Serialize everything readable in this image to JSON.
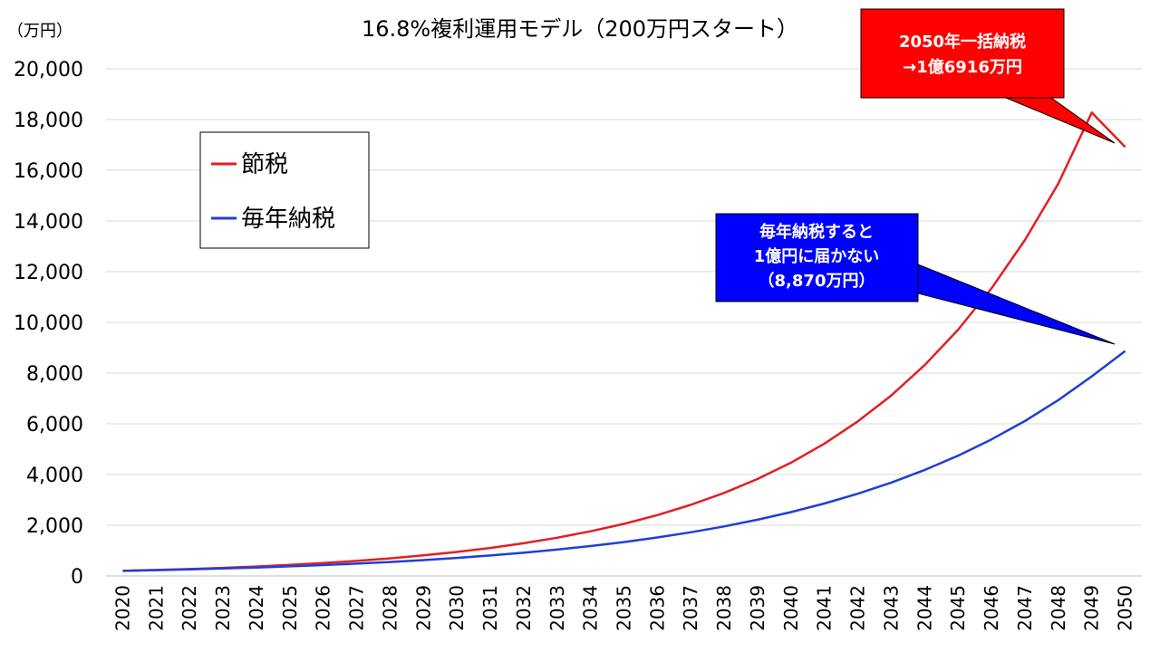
{
  "chart_data": {
    "type": "line",
    "title": "16.8%複利運用モデル（200万円スタート）",
    "y_unit_label": "（万円）",
    "ylim": [
      0,
      20000
    ],
    "y_ticks": [
      "0",
      "2,000",
      "4,000",
      "6,000",
      "8,000",
      "10,000",
      "12,000",
      "14,000",
      "16,000",
      "18,000",
      "20,000"
    ],
    "categories": [
      "2020",
      "2021",
      "2022",
      "2023",
      "2024",
      "2025",
      "2026",
      "2027",
      "2028",
      "2029",
      "2030",
      "2031",
      "2032",
      "2033",
      "2034",
      "2035",
      "2036",
      "2037",
      "2038",
      "2039",
      "2040",
      "2041",
      "2042",
      "2043",
      "2044",
      "2045",
      "2046",
      "2047",
      "2048",
      "2049",
      "2050"
    ],
    "grid": true,
    "legend_position": "upper-left",
    "series": [
      {
        "name": "節税",
        "color": "#e31e24",
        "values": [
          200,
          234,
          273,
          319,
          372,
          435,
          508,
          593,
          693,
          809,
          945,
          1104,
          1290,
          1506,
          1760,
          2055,
          2400,
          2804,
          3275,
          3825,
          4468,
          5218,
          6095,
          7119,
          8315,
          9712,
          11344,
          13250,
          15476,
          18276,
          16916
        ]
      },
      {
        "name": "毎年納税",
        "color": "#1f3fd6",
        "values": [
          200,
          227,
          258,
          293,
          332,
          377,
          428,
          486,
          551,
          626,
          710,
          806,
          915,
          1038,
          1178,
          1337,
          1517,
          1722,
          1955,
          2219,
          2518,
          2858,
          3244,
          3682,
          4179,
          4743,
          5384,
          6111,
          6936,
          7872,
          8870
        ]
      }
    ],
    "annotations": [
      {
        "lines": [
          "2050年一括納税",
          "→1億6916万円"
        ],
        "fill": "#ff0000",
        "points_to": "2049.5"
      },
      {
        "lines": [
          "毎年納税すると",
          "1億円に届かない",
          "（8,870万円）"
        ],
        "fill": "#0000ff",
        "points_to": "2049.5"
      }
    ]
  }
}
